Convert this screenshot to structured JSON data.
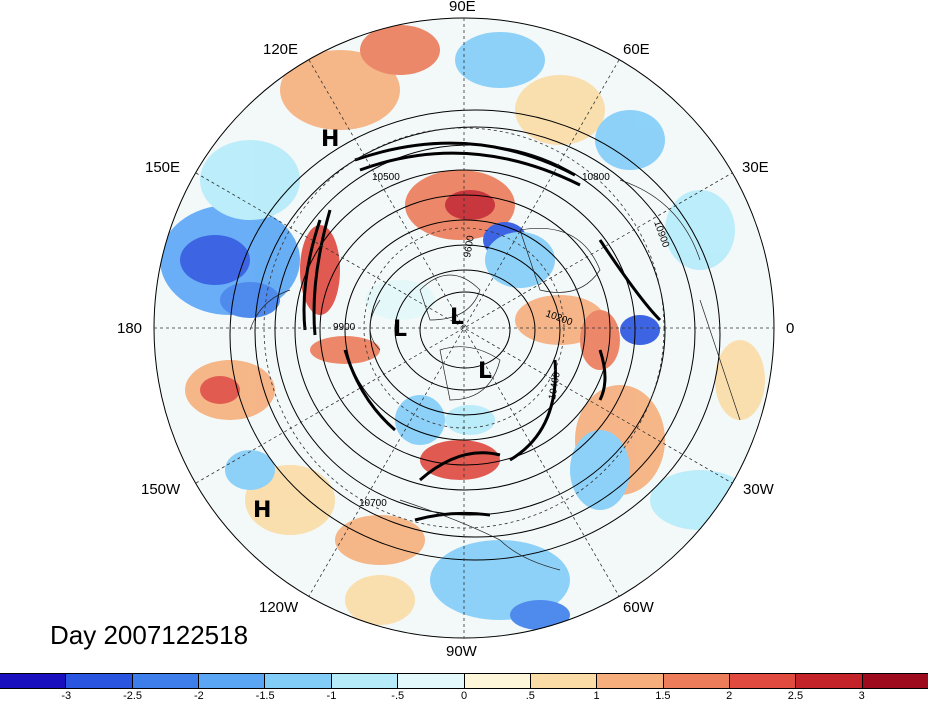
{
  "title": "Day 2007122518",
  "longitude_labels": {
    "lon_90e": "90E",
    "lon_120e": "120E",
    "lon_60e": "60E",
    "lon_150e": "150E",
    "lon_30e": "30E",
    "lon_180": "180",
    "lon_0": "0",
    "lon_150w": "150W",
    "lon_30w": "30W",
    "lon_120w": "120W",
    "lon_60w": "60W",
    "lon_90w": "90W"
  },
  "pressure_centers": [
    "H",
    "H",
    "L",
    "L",
    "L"
  ],
  "contour_labels": [
    "9600",
    "9900",
    "10200",
    "10400",
    "10500",
    "10700",
    "10800",
    "10900"
  ],
  "colorbar": {
    "ticks": [
      "-3",
      "-2.5",
      "-2",
      "-1.5",
      "-1",
      "-.5",
      "0",
      ".5",
      "1",
      "1.5",
      "2",
      "2.5",
      "3"
    ],
    "colors": [
      "#1a0fbf",
      "#2a55e0",
      "#3d7eeb",
      "#5aa6f5",
      "#82cdf8",
      "#b6ebfa",
      "#e3f8fb",
      "#fdf6d8",
      "#fbdca6",
      "#f6ae7c",
      "#ec7c5a",
      "#e04a3f",
      "#c5232a",
      "#9e0b1c"
    ]
  }
}
